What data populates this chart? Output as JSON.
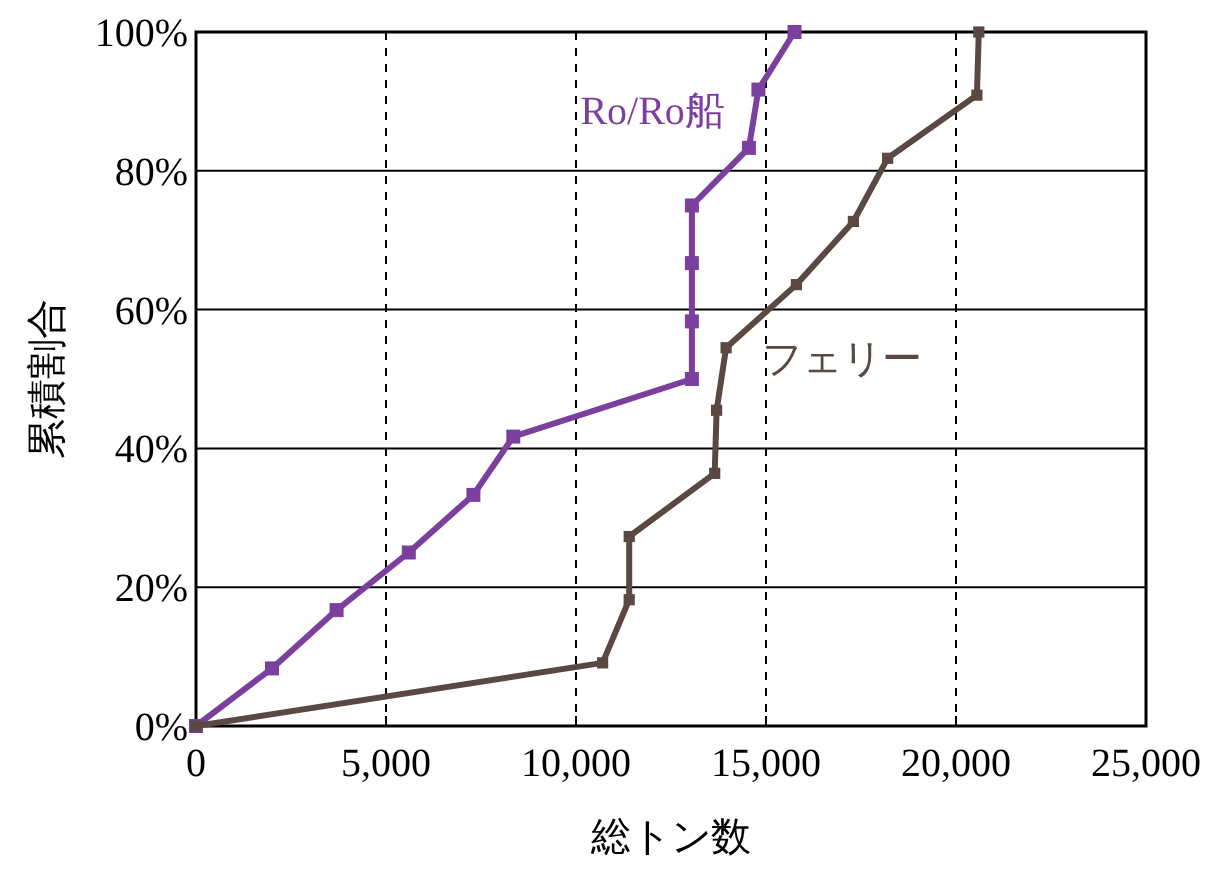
{
  "chart_data": {
    "type": "line",
    "xlabel": "総トン数",
    "ylabel": "累積割合",
    "xlim": [
      0,
      25000
    ],
    "xticks": [
      {
        "value": 0,
        "label": "0"
      },
      {
        "value": 5000,
        "label": "5,000"
      },
      {
        "value": 10000,
        "label": "10,000"
      },
      {
        "value": 15000,
        "label": "15,000"
      },
      {
        "value": 20000,
        "label": "20,000"
      },
      {
        "value": 25000,
        "label": "25,000"
      }
    ],
    "ylim": [
      0,
      100
    ],
    "yticks": [
      {
        "value": 0,
        "label": "0%"
      },
      {
        "value": 20,
        "label": "20%"
      },
      {
        "value": 40,
        "label": "40%"
      },
      {
        "value": 60,
        "label": "60%"
      },
      {
        "value": 80,
        "label": "80%"
      },
      {
        "value": 100,
        "label": "100%"
      }
    ],
    "grid": true,
    "marker": "square",
    "line_style": "solid",
    "series": [
      {
        "name": "Ro/Ro船",
        "color": "#7b3f9e",
        "x": [
          0,
          2000,
          3700,
          5600,
          7300,
          8350,
          13050,
          13050,
          13050,
          13050,
          14550,
          14800,
          15750
        ],
        "values": [
          0,
          8.3,
          16.7,
          25,
          33.3,
          41.7,
          50,
          58.3,
          66.7,
          75,
          83.3,
          91.7,
          100
        ]
      },
      {
        "name": "フェリー",
        "color": "#5a4843",
        "x": [
          0,
          10700,
          11400,
          11400,
          13650,
          13700,
          13950,
          15800,
          17300,
          18200,
          20550,
          20600
        ],
        "values": [
          0,
          9.1,
          18.2,
          27.3,
          36.4,
          45.5,
          54.5,
          63.6,
          72.7,
          81.8,
          90.9,
          100
        ]
      }
    ]
  }
}
